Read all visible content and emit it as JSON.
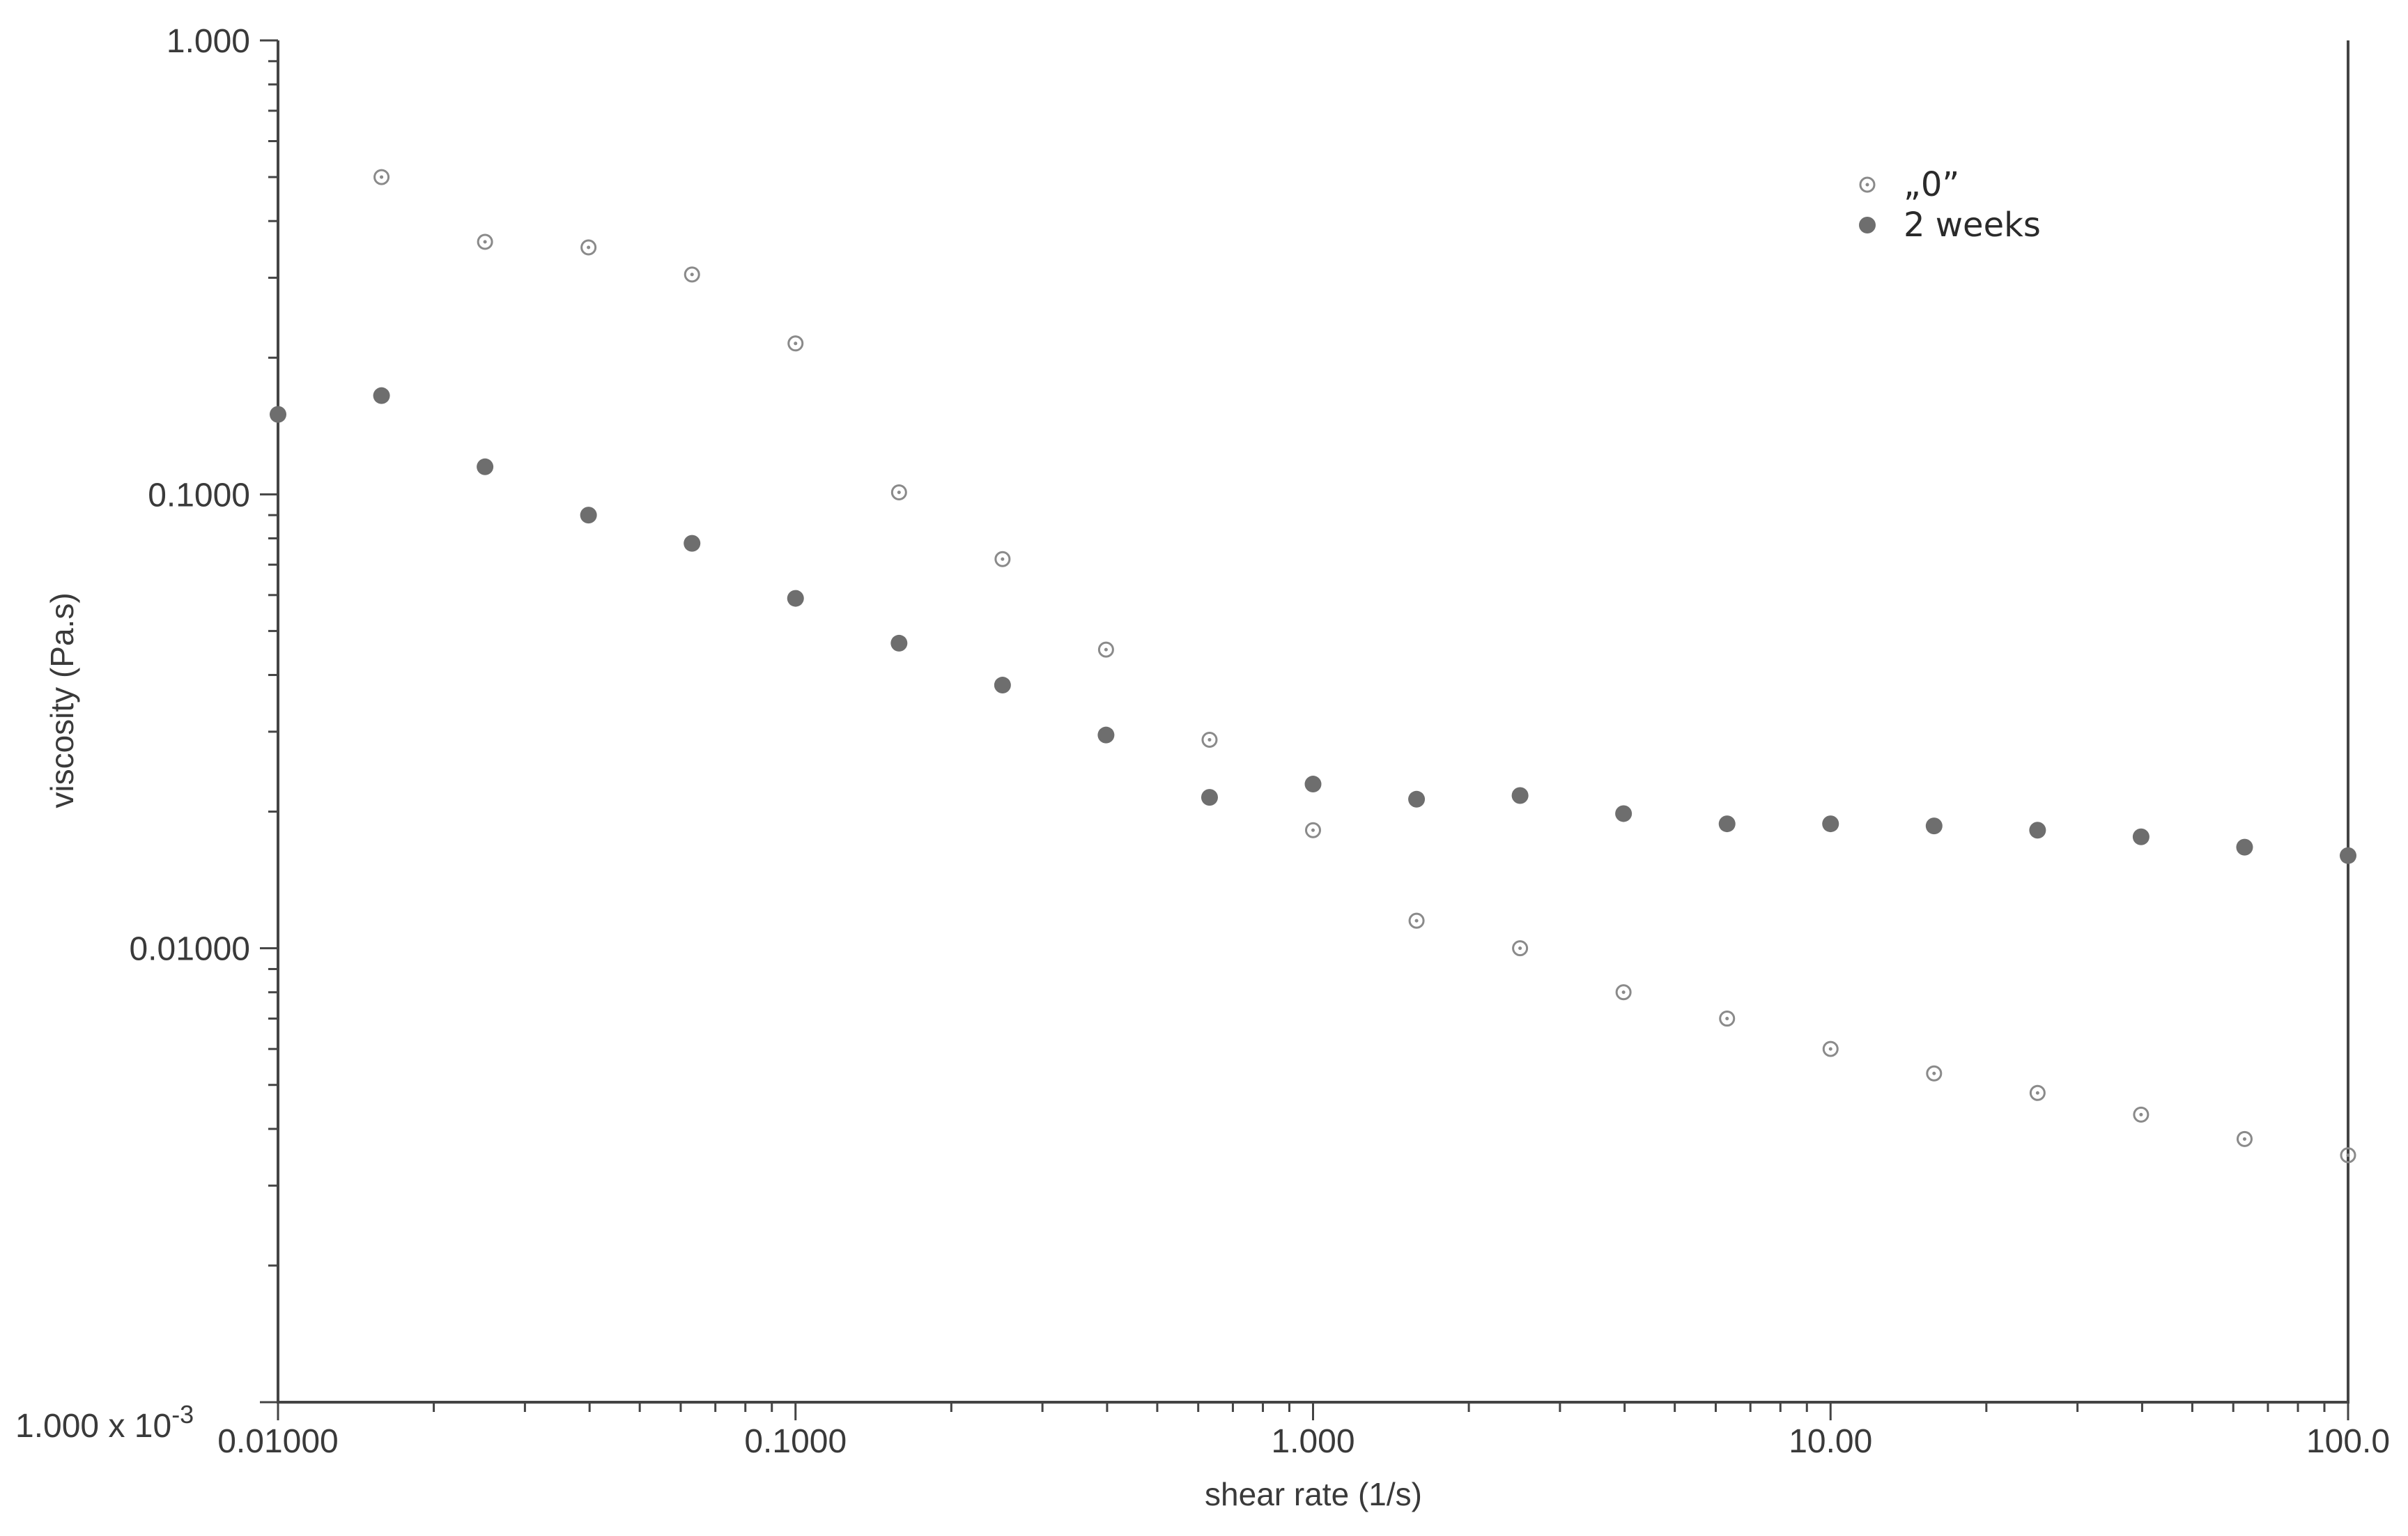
{
  "colors": {
    "axis": "#444444",
    "open_marker": "#8a8a8a",
    "filled_marker": "#6e6e6e",
    "text": "#3a3a3a"
  },
  "chart_data": {
    "type": "scatter",
    "title": "",
    "xlabel": "shear rate (1/s)",
    "ylabel": "viscosity (Pa.s)",
    "x_scale": "log",
    "y_scale": "log",
    "xlim": [
      0.01,
      100
    ],
    "ylim": [
      0.001,
      1
    ],
    "x_ticks": [
      {
        "value": 0.01,
        "label": "0.01000"
      },
      {
        "value": 0.1,
        "label": "0.1000"
      },
      {
        "value": 1,
        "label": "1.000"
      },
      {
        "value": 10,
        "label": "10.00"
      },
      {
        "value": 100,
        "label": "100.0"
      }
    ],
    "y_ticks": [
      {
        "value": 1,
        "label": "1.000"
      },
      {
        "value": 0.1,
        "label": "0.1000"
      },
      {
        "value": 0.01,
        "label": "0.01000"
      }
    ],
    "y_min_label": {
      "base": "1.000 x 10",
      "exponent": "-3"
    },
    "grid": false,
    "legend_position": "top-right",
    "series": [
      {
        "name": "„0”",
        "marker": "open-circle",
        "x": [
          0.01585,
          0.02512,
          0.03981,
          0.0631,
          0.1,
          0.1585,
          0.2512,
          0.3981,
          0.631,
          1,
          1.585,
          2.512,
          3.981,
          6.31,
          10,
          15.85,
          25.12,
          39.81,
          63.1,
          100
        ],
        "y": [
          0.5,
          0.36,
          0.35,
          0.305,
          0.215,
          0.101,
          0.072,
          0.0455,
          0.0288,
          0.0182,
          0.0115,
          0.01,
          0.008,
          0.007,
          0.006,
          0.0053,
          0.0048,
          0.0043,
          0.0038,
          0.0035
        ]
      },
      {
        "name": "2 weeks",
        "marker": "filled-circle",
        "x": [
          0.01,
          0.01585,
          0.02512,
          0.03981,
          0.0631,
          0.1,
          0.1585,
          0.2512,
          0.3981,
          0.631,
          1,
          1.585,
          2.512,
          3.981,
          6.31,
          10,
          15.85,
          25.12,
          39.81,
          63.1,
          100
        ],
        "y": [
          0.15,
          0.165,
          0.115,
          0.09,
          0.078,
          0.059,
          0.047,
          0.038,
          0.0295,
          0.0215,
          0.023,
          0.0213,
          0.0217,
          0.0198,
          0.0188,
          0.0188,
          0.0186,
          0.0182,
          0.0176,
          0.0167,
          0.016
        ]
      }
    ]
  }
}
